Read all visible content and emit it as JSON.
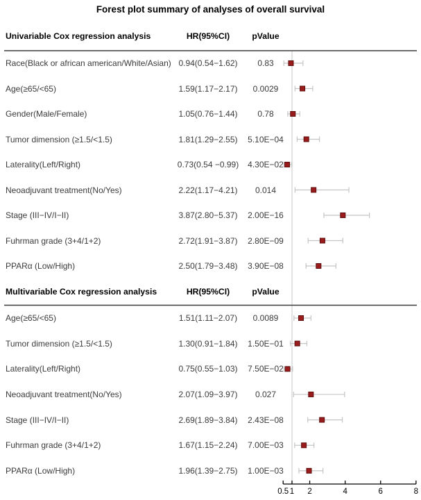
{
  "title": "Forest plot summary of analyses of overall survival",
  "colors": {
    "marker": "#9a1b1b",
    "marker_border": "#5e0d0d",
    "ci_bar": "#c4c4c4",
    "ref_line": "#d0d0d0",
    "separator": "#3c3c3c",
    "axis": "#000000"
  },
  "chart_data": {
    "type": "forest",
    "xlabel": "",
    "ylabel": "",
    "xlim": [
      0.5,
      8
    ],
    "xticks": [
      0.5,
      1,
      2,
      4,
      6,
      8
    ],
    "x_scale": "linear",
    "ref_value": 1,
    "grid": false,
    "legend": "none",
    "sections": [
      {
        "header": {
          "label": "Univariable Cox regression analysis",
          "hr": "HR(95%CI)",
          "pvalue": "pValue"
        },
        "rows": [
          {
            "label": "Race(Black or african american/White/Asian)",
            "hr_ci": "0.94(0.54−1.62)",
            "pvalue": "0.83",
            "hr": 0.94,
            "lo": 0.54,
            "hi": 1.62
          },
          {
            "label": "Age(≥65/<65)",
            "hr_ci": "1.59(1.17−2.17)",
            "pvalue": "0.0029",
            "hr": 1.59,
            "lo": 1.17,
            "hi": 2.17
          },
          {
            "label": "Gender(Male/Female)",
            "hr_ci": "1.05(0.76−1.44)",
            "pvalue": "0.78",
            "hr": 1.05,
            "lo": 0.76,
            "hi": 1.44
          },
          {
            "label": "Tumor dimension (≥1.5/<1.5)",
            "hr_ci": "1.81(1.29−2.55)",
            "pvalue": "5.10E−04",
            "hr": 1.81,
            "lo": 1.29,
            "hi": 2.55
          },
          {
            "label": "Laterality(Left/Right)",
            "hr_ci": "0.73(0.54 −0.99)",
            "pvalue": "4.30E−02",
            "hr": 0.73,
            "lo": 0.54,
            "hi": 0.99
          },
          {
            "label": "Neoadjuvant treatment(No/Yes)",
            "hr_ci": "2.22(1.17−4.21)",
            "pvalue": "0.014",
            "hr": 2.22,
            "lo": 1.17,
            "hi": 4.21
          },
          {
            "label": "Stage (III−IV/I−II)",
            "hr_ci": "3.87(2.80−5.37)",
            "pvalue": "2.00E−16",
            "hr": 3.87,
            "lo": 2.8,
            "hi": 5.37
          },
          {
            "label": "Fuhrman grade (3+4/1+2)",
            "hr_ci": "2.72(1.91−3.87)",
            "pvalue": "2.80E−09",
            "hr": 2.72,
            "lo": 1.91,
            "hi": 3.87
          },
          {
            "label": "PPARα (Low/High)",
            "hr_ci": "2.50(1.79−3.48)",
            "pvalue": "3.90E−08",
            "hr": 2.5,
            "lo": 1.79,
            "hi": 3.48
          }
        ]
      },
      {
        "header": {
          "label": "Multivariable Cox regression analysis",
          "hr": "HR(95%CI)",
          "pvalue": "pValue"
        },
        "rows": [
          {
            "label": "Age(≥65/<65)",
            "hr_ci": "1.51(1.11−2.07)",
            "pvalue": "0.0089",
            "hr": 1.51,
            "lo": 1.11,
            "hi": 2.07
          },
          {
            "label": "Tumor dimension (≥1.5/<1.5)",
            "hr_ci": "1.30(0.91−1.84)",
            "pvalue": "1.50E−01",
            "hr": 1.3,
            "lo": 0.91,
            "hi": 1.84
          },
          {
            "label": "Laterality(Left/Right)",
            "hr_ci": "0.75(0.55−1.03)",
            "pvalue": "7.50E−02",
            "hr": 0.75,
            "lo": 0.55,
            "hi": 1.03
          },
          {
            "label": "Neoadjuvant treatment(No/Yes)",
            "hr_ci": "2.07(1.09−3.97)",
            "pvalue": "0.027",
            "hr": 2.07,
            "lo": 1.09,
            "hi": 3.97
          },
          {
            "label": "Stage (III−IV/I−II)",
            "hr_ci": "2.69(1.89−3.84)",
            "pvalue": "2.43E−08",
            "hr": 2.69,
            "lo": 1.89,
            "hi": 3.84
          },
          {
            "label": "Fuhrman grade (3+4/1+2)",
            "hr_ci": "1.67(1.15−2.24)",
            "pvalue": "7.00E−03",
            "hr": 1.67,
            "lo": 1.15,
            "hi": 2.24
          },
          {
            "label": "PPARα (Low/High)",
            "hr_ci": "1.96(1.39−2.75)",
            "pvalue": "1.00E−03",
            "hr": 1.96,
            "lo": 1.39,
            "hi": 2.75
          }
        ]
      }
    ]
  }
}
